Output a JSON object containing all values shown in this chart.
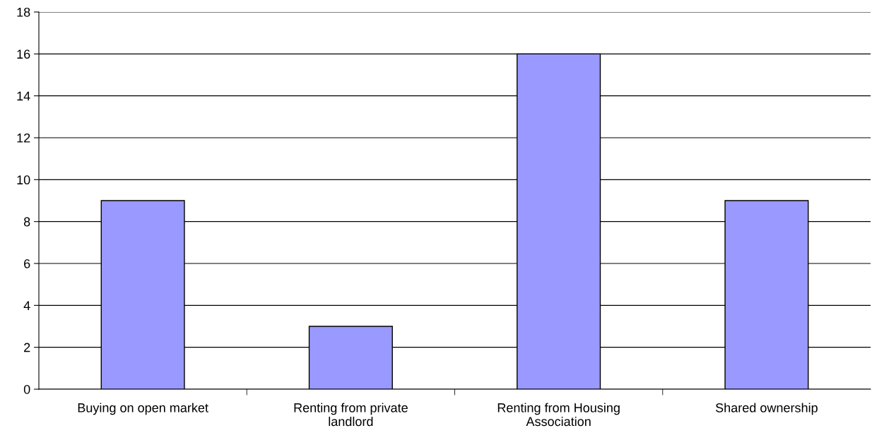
{
  "chart_data": {
    "type": "bar",
    "categories": [
      "Buying on open market",
      "Renting from private\nlandlord",
      "Renting from Housing\nAssociation",
      "Shared ownership"
    ],
    "values": [
      9,
      3,
      16,
      9
    ],
    "color": "#9999ff",
    "ylim": [
      0,
      18
    ],
    "yticks": [
      0,
      2,
      4,
      6,
      8,
      10,
      12,
      14,
      16,
      18
    ],
    "grid": "y",
    "legend": false
  }
}
